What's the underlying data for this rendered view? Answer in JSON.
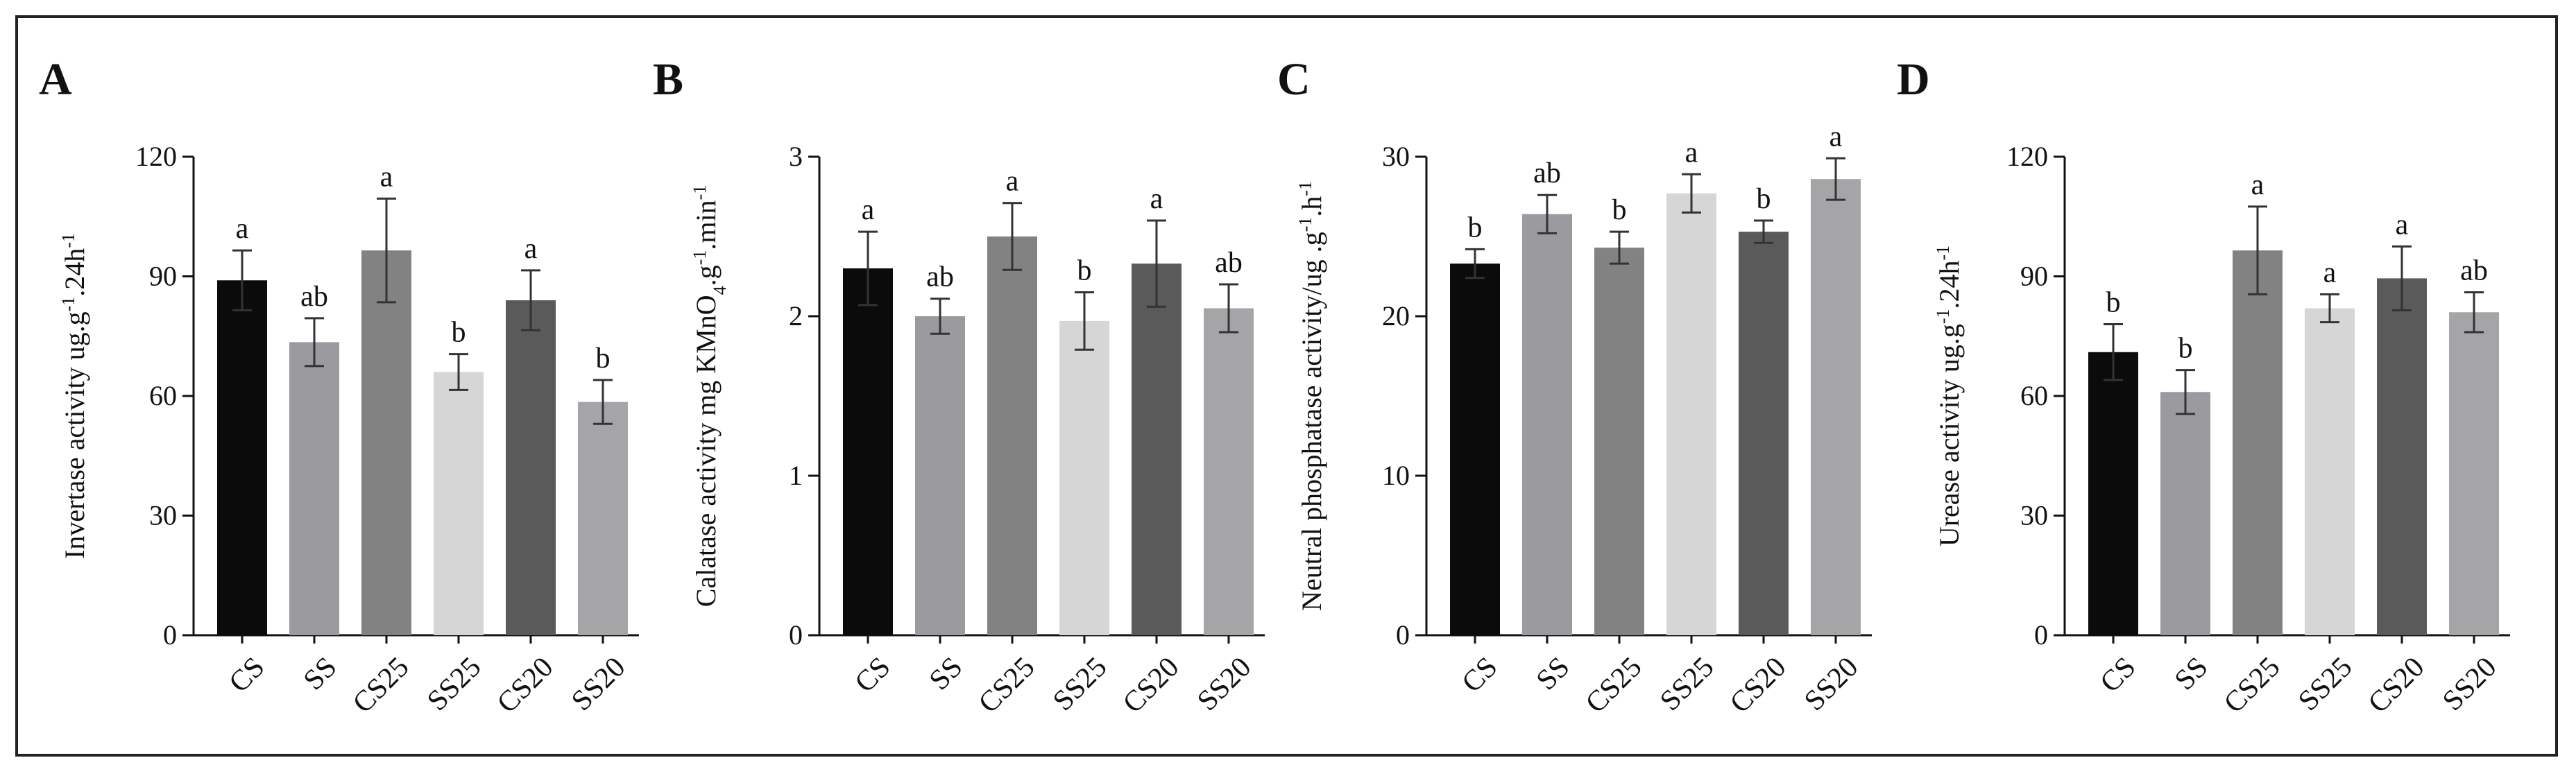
{
  "chart_data": [
    {
      "panel": "A",
      "type": "bar",
      "ylabel": "Invertase activity ug.g-1.24h-1",
      "ylabel_parts": [
        [
          "Invertase activity ug.g",
          ""
        ],
        [
          "-1",
          "sup"
        ],
        [
          ".24h",
          ""
        ],
        [
          "-1",
          "sup"
        ]
      ],
      "ylim": [
        0,
        120
      ],
      "yticks": [
        0,
        30,
        60,
        90,
        120
      ],
      "categories": [
        "CS",
        "SS",
        "CS25",
        "SS25",
        "CS20",
        "SS20"
      ],
      "values": [
        89,
        73.5,
        96.5,
        66,
        84,
        58.5
      ],
      "errors": [
        7.5,
        6,
        13,
        4.5,
        7.5,
        5.5
      ],
      "letters": [
        "a",
        "ab",
        "a",
        "b",
        "a",
        "b"
      ]
    },
    {
      "panel": "B",
      "type": "bar",
      "ylabel": "Calatase activity mg KMnO4.g-1.min-1",
      "ylabel_parts": [
        [
          "Calatase activity mg KMnO",
          ""
        ],
        [
          "4",
          "sub"
        ],
        [
          ".g",
          ""
        ],
        [
          "-1",
          "sup"
        ],
        [
          ".min",
          ""
        ],
        [
          "-1",
          "sup"
        ]
      ],
      "ylim": [
        0,
        3
      ],
      "yticks": [
        0,
        1,
        2,
        3
      ],
      "categories": [
        "CS",
        "SS",
        "CS25",
        "SS25",
        "CS20",
        "SS20"
      ],
      "values": [
        2.3,
        2.0,
        2.5,
        1.97,
        2.33,
        2.05
      ],
      "errors": [
        0.23,
        0.11,
        0.21,
        0.18,
        0.27,
        0.15
      ],
      "letters": [
        "a",
        "ab",
        "a",
        "b",
        "a",
        "ab"
      ]
    },
    {
      "panel": "C",
      "type": "bar",
      "ylabel": "Neutral phosphatase activity/ug .g-1.h-1",
      "ylabel_parts": [
        [
          "Neutral phosphatase activity/ug .g",
          ""
        ],
        [
          "-1",
          "sup"
        ],
        [
          ".h",
          ""
        ],
        [
          "-1",
          "sup"
        ]
      ],
      "ylim": [
        0,
        30
      ],
      "yticks": [
        0,
        10,
        20,
        30
      ],
      "categories": [
        "CS",
        "SS",
        "CS25",
        "SS25",
        "CS20",
        "SS20"
      ],
      "values": [
        23.3,
        26.4,
        24.3,
        27.7,
        25.3,
        28.6
      ],
      "errors": [
        0.9,
        1.2,
        1.0,
        1.2,
        0.7,
        1.3
      ],
      "letters": [
        "b",
        "ab",
        "b",
        "a",
        "b",
        "a"
      ]
    },
    {
      "panel": "D",
      "type": "bar",
      "ylabel": "Urease activity ug.g-1.24h-1",
      "ylabel_parts": [
        [
          "Urease activity ug.g",
          ""
        ],
        [
          "-1",
          "sup"
        ],
        [
          ".24h",
          ""
        ],
        [
          "-1",
          "sup"
        ]
      ],
      "ylim": [
        0,
        120
      ],
      "yticks": [
        0,
        30,
        60,
        90,
        120
      ],
      "categories": [
        "CS",
        "SS",
        "CS25",
        "SS25",
        "CS20",
        "SS20"
      ],
      "values": [
        71,
        61,
        96.5,
        82,
        89.5,
        81
      ],
      "errors": [
        7,
        5.5,
        11,
        3.5,
        8,
        5
      ],
      "letters": [
        "b",
        "b",
        "a",
        "a",
        "a",
        "ab"
      ]
    }
  ],
  "bar_colors": [
    "#0b0b0b",
    "#9b9b9f",
    "#828282",
    "#d6d6d6",
    "#5a5a5a",
    "#a5a5a8"
  ],
  "axis_color": "#111111"
}
